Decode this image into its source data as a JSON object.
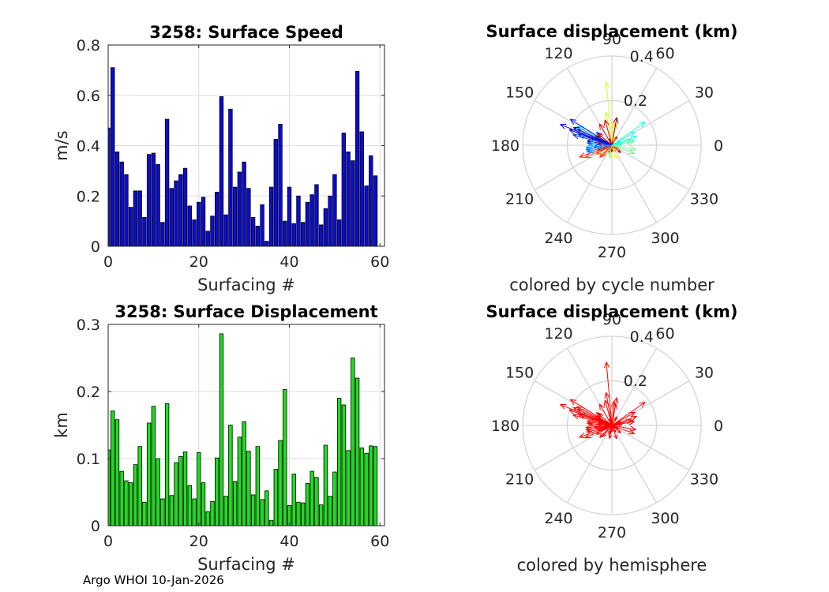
{
  "chart_data": [
    {
      "type": "bar",
      "title": "3258: Surface Speed",
      "xlabel": "Surfacing #",
      "ylabel": "m/s",
      "xlim": [
        0,
        61
      ],
      "ylim": [
        0,
        0.8
      ],
      "xticks": [
        0,
        20,
        40,
        60
      ],
      "yticks": [
        0,
        0.2,
        0.4,
        0.6,
        0.8
      ],
      "bar_color": "#0b0bd6",
      "values": [
        0.47,
        0.71,
        0.375,
        0.335,
        0.285,
        0.155,
        0.22,
        0.22,
        0.115,
        0.365,
        0.37,
        0.325,
        0.095,
        0.505,
        0.23,
        0.26,
        0.285,
        0.31,
        0.16,
        0.105,
        0.175,
        0.195,
        0.06,
        0.12,
        0.215,
        0.595,
        0.125,
        0.545,
        0.235,
        0.295,
        0.335,
        0.23,
        0.115,
        0.08,
        0.165,
        0.02,
        0.235,
        0.425,
        0.485,
        0.1,
        0.235,
        0.09,
        0.2,
        0.095,
        0.175,
        0.205,
        0.245,
        0.085,
        0.15,
        0.2,
        0.285,
        0.105,
        0.45,
        0.375,
        0.34,
        0.695,
        0.455,
        0.24,
        0.36,
        0.28
      ]
    },
    {
      "type": "bar",
      "title": "3258: Surface Displacement",
      "xlabel": "Surfacing #",
      "ylabel": "km",
      "xlim": [
        0,
        61
      ],
      "ylim": [
        0,
        0.3
      ],
      "xticks": [
        0,
        20,
        40,
        60
      ],
      "yticks": [
        0,
        0.1,
        0.2,
        0.3
      ],
      "bar_color": "#1de01d",
      "values": [
        0.113,
        0.171,
        0.158,
        0.081,
        0.067,
        0.064,
        0.091,
        0.118,
        0.035,
        0.153,
        0.178,
        0.1,
        0.04,
        0.182,
        0.045,
        0.094,
        0.103,
        0.11,
        0.06,
        0.04,
        0.109,
        0.064,
        0.021,
        0.036,
        0.101,
        0.286,
        0.044,
        0.15,
        0.066,
        0.132,
        0.155,
        0.111,
        0.046,
        0.118,
        0.039,
        0.052,
        0.008,
        0.084,
        0.127,
        0.203,
        0.03,
        0.077,
        0.035,
        0.034,
        0.063,
        0.081,
        0.072,
        0.031,
        0.12,
        0.044,
        0.08,
        0.19,
        0.18,
        0.112,
        0.25,
        0.22,
        0.116,
        0.108,
        0.119,
        0.118
      ]
    },
    {
      "type": "polar",
      "title": "Surface displacement (km)",
      "caption": "colored by cycle number",
      "rmax": 0.4,
      "rticks": [
        0.2,
        0.4
      ],
      "rtick_labels": [
        "0.2",
        "0.4"
      ],
      "angle_labels": [
        "0",
        "30",
        "60",
        "90",
        "120",
        "150",
        "180",
        "210",
        "240",
        "270",
        "300",
        "330"
      ],
      "vectors": [
        {
          "r": 0.113,
          "deg": 170,
          "color": "#00008f"
        },
        {
          "r": 0.171,
          "deg": 155,
          "color": "#00009f"
        },
        {
          "r": 0.158,
          "deg": 162,
          "color": "#0000bf"
        },
        {
          "r": 0.081,
          "deg": 185,
          "color": "#0000df"
        },
        {
          "r": 0.067,
          "deg": 200,
          "color": "#0000ff"
        },
        {
          "r": 0.064,
          "deg": 175,
          "color": "#0020ff"
        },
        {
          "r": 0.091,
          "deg": 140,
          "color": "#0040ff"
        },
        {
          "r": 0.118,
          "deg": 190,
          "color": "#0060ff"
        },
        {
          "r": 0.035,
          "deg": 210,
          "color": "#0080ff"
        },
        {
          "r": 0.153,
          "deg": 160,
          "color": "#009fff"
        },
        {
          "r": 0.178,
          "deg": 152,
          "color": "#00bfff"
        },
        {
          "r": 0.1,
          "deg": 175,
          "color": "#00dfff"
        },
        {
          "r": 0.04,
          "deg": 25,
          "color": "#00ffff"
        },
        {
          "r": 0.182,
          "deg": 35,
          "color": "#10ffef"
        },
        {
          "r": 0.045,
          "deg": 5,
          "color": "#20ffdf"
        },
        {
          "r": 0.094,
          "deg": 15,
          "color": "#40ffbf"
        },
        {
          "r": 0.103,
          "deg": 10,
          "color": "#60ff9f"
        },
        {
          "r": 0.11,
          "deg": 350,
          "color": "#80ff80"
        },
        {
          "r": 0.06,
          "deg": 260,
          "color": "#9fff60"
        },
        {
          "r": 0.04,
          "deg": 250,
          "color": "#bfff40"
        },
        {
          "r": 0.109,
          "deg": 85,
          "color": "#dfff20"
        },
        {
          "r": 0.064,
          "deg": 290,
          "color": "#ffff00"
        },
        {
          "r": 0.021,
          "deg": 300,
          "color": "#ffdf00"
        },
        {
          "r": 0.036,
          "deg": 60,
          "color": "#ffbf00"
        },
        {
          "r": 0.101,
          "deg": 80,
          "color": "#ff9f00"
        },
        {
          "r": 0.286,
          "deg": 95,
          "color": "#d8ff28"
        },
        {
          "r": 0.044,
          "deg": 200,
          "color": "#ff8000"
        },
        {
          "r": 0.15,
          "deg": 100,
          "color": "#c0ff40"
        },
        {
          "r": 0.066,
          "deg": 230,
          "color": "#ff6000"
        },
        {
          "r": 0.132,
          "deg": 205,
          "color": "#ff4000"
        },
        {
          "r": 0.155,
          "deg": 200,
          "color": "#ff2000"
        },
        {
          "r": 0.111,
          "deg": 120,
          "color": "#ff0000"
        },
        {
          "r": 0.046,
          "deg": 60,
          "color": "#ef0000"
        },
        {
          "r": 0.118,
          "deg": 105,
          "color": "#df0000"
        },
        {
          "r": 0.039,
          "deg": 250,
          "color": "#cf0000"
        },
        {
          "r": 0.052,
          "deg": 320,
          "color": "#bf0000"
        },
        {
          "r": 0.008,
          "deg": 45,
          "color": "#af0000"
        },
        {
          "r": 0.084,
          "deg": 150,
          "color": "#9f0000"
        },
        {
          "r": 0.127,
          "deg": 80,
          "color": "#8f0000"
        },
        {
          "r": 0.203,
          "deg": 160,
          "color": "#0000cf"
        },
        {
          "r": 0.03,
          "deg": 270,
          "color": "#800000"
        },
        {
          "r": 0.077,
          "deg": 225,
          "color": "#ff3000"
        },
        {
          "r": 0.035,
          "deg": 300,
          "color": "#ffa000"
        },
        {
          "r": 0.034,
          "deg": 330,
          "color": "#ff5000"
        },
        {
          "r": 0.063,
          "deg": 170,
          "color": "#e00000"
        },
        {
          "r": 0.081,
          "deg": 140,
          "color": "#c00000"
        },
        {
          "r": 0.072,
          "deg": 190,
          "color": "#ff7000"
        },
        {
          "r": 0.031,
          "deg": 110,
          "color": "#a00000"
        },
        {
          "r": 0.12,
          "deg": 30,
          "color": "#30ffcf"
        },
        {
          "r": 0.044,
          "deg": 255,
          "color": "#a0ff60"
        },
        {
          "r": 0.08,
          "deg": 210,
          "color": "#ff4800"
        },
        {
          "r": 0.19,
          "deg": 155,
          "color": "#0000af"
        },
        {
          "r": 0.18,
          "deg": 165,
          "color": "#0030ff"
        },
        {
          "r": 0.112,
          "deg": 175,
          "color": "#0050ff"
        },
        {
          "r": 0.25,
          "deg": 158,
          "color": "#0000ef"
        },
        {
          "r": 0.22,
          "deg": 148,
          "color": "#0018ff"
        },
        {
          "r": 0.116,
          "deg": 195,
          "color": "#0070ff"
        },
        {
          "r": 0.108,
          "deg": 340,
          "color": "#50ffaf"
        },
        {
          "r": 0.119,
          "deg": 20,
          "color": "#20ffe0"
        },
        {
          "r": 0.118,
          "deg": 185,
          "color": "#00a0ff"
        }
      ]
    },
    {
      "type": "polar",
      "title": "Surface displacement (km)",
      "caption": "colored by hemisphere",
      "rmax": 0.4,
      "rticks": [
        0.2,
        0.4
      ],
      "rtick_labels": [
        "0.2",
        "0.4"
      ],
      "angle_labels": [
        "0",
        "30",
        "60",
        "90",
        "120",
        "150",
        "180",
        "210",
        "240",
        "270",
        "300",
        "330"
      ],
      "vector_color": "#ff0000",
      "vectors": [
        {
          "r": 0.113,
          "deg": 170
        },
        {
          "r": 0.171,
          "deg": 155
        },
        {
          "r": 0.158,
          "deg": 162
        },
        {
          "r": 0.081,
          "deg": 185
        },
        {
          "r": 0.067,
          "deg": 200
        },
        {
          "r": 0.064,
          "deg": 175
        },
        {
          "r": 0.091,
          "deg": 140
        },
        {
          "r": 0.118,
          "deg": 190
        },
        {
          "r": 0.035,
          "deg": 210
        },
        {
          "r": 0.153,
          "deg": 160
        },
        {
          "r": 0.178,
          "deg": 152
        },
        {
          "r": 0.1,
          "deg": 175
        },
        {
          "r": 0.04,
          "deg": 25
        },
        {
          "r": 0.182,
          "deg": 35
        },
        {
          "r": 0.045,
          "deg": 5
        },
        {
          "r": 0.094,
          "deg": 15
        },
        {
          "r": 0.103,
          "deg": 10
        },
        {
          "r": 0.11,
          "deg": 350
        },
        {
          "r": 0.06,
          "deg": 260
        },
        {
          "r": 0.04,
          "deg": 250
        },
        {
          "r": 0.109,
          "deg": 85
        },
        {
          "r": 0.064,
          "deg": 290
        },
        {
          "r": 0.021,
          "deg": 300
        },
        {
          "r": 0.036,
          "deg": 60
        },
        {
          "r": 0.101,
          "deg": 80
        },
        {
          "r": 0.286,
          "deg": 95
        },
        {
          "r": 0.044,
          "deg": 200
        },
        {
          "r": 0.15,
          "deg": 100
        },
        {
          "r": 0.066,
          "deg": 230
        },
        {
          "r": 0.132,
          "deg": 205
        },
        {
          "r": 0.155,
          "deg": 200
        },
        {
          "r": 0.111,
          "deg": 120
        },
        {
          "r": 0.046,
          "deg": 60
        },
        {
          "r": 0.118,
          "deg": 105
        },
        {
          "r": 0.039,
          "deg": 250
        },
        {
          "r": 0.052,
          "deg": 320
        },
        {
          "r": 0.008,
          "deg": 45
        },
        {
          "r": 0.084,
          "deg": 150
        },
        {
          "r": 0.127,
          "deg": 80
        },
        {
          "r": 0.203,
          "deg": 160
        },
        {
          "r": 0.03,
          "deg": 270
        },
        {
          "r": 0.077,
          "deg": 225
        },
        {
          "r": 0.035,
          "deg": 300
        },
        {
          "r": 0.034,
          "deg": 330
        },
        {
          "r": 0.063,
          "deg": 170
        },
        {
          "r": 0.081,
          "deg": 140
        },
        {
          "r": 0.072,
          "deg": 190
        },
        {
          "r": 0.031,
          "deg": 110
        },
        {
          "r": 0.12,
          "deg": 30
        },
        {
          "r": 0.044,
          "deg": 255
        },
        {
          "r": 0.08,
          "deg": 210
        },
        {
          "r": 0.19,
          "deg": 155
        },
        {
          "r": 0.18,
          "deg": 165
        },
        {
          "r": 0.112,
          "deg": 175
        },
        {
          "r": 0.25,
          "deg": 158
        },
        {
          "r": 0.22,
          "deg": 148
        },
        {
          "r": 0.116,
          "deg": 195
        },
        {
          "r": 0.108,
          "deg": 340
        },
        {
          "r": 0.119,
          "deg": 20
        },
        {
          "r": 0.118,
          "deg": 185
        }
      ]
    }
  ],
  "footer": {
    "credit": "Argo WHOI 10-Jan-2026"
  }
}
